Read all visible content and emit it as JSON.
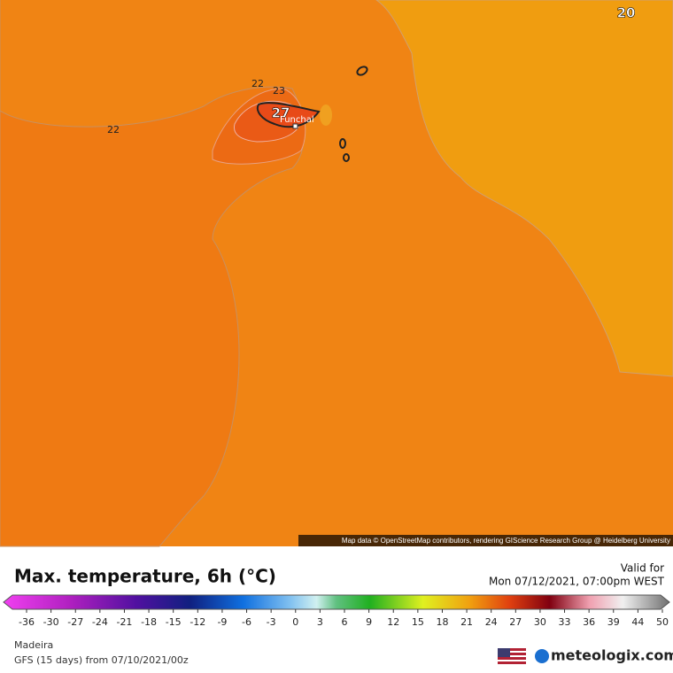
{
  "map": {
    "contour_labels": [
      "20",
      "22",
      "22",
      "23",
      "27"
    ],
    "place": "Funchal",
    "attribution": "Map data © OpenStreetMap contributors, rendering GIScience Research Group @ Heidelberg University"
  },
  "legend": {
    "title": "Max. temperature, 6h (°C)",
    "valid_label": "Valid for",
    "valid_time": "Mon 07/12/2021, 07:00pm WEST",
    "ticks": [
      -36,
      -30,
      -27,
      -24,
      -21,
      -18,
      -15,
      -12,
      -9,
      -6,
      -3,
      0,
      3,
      6,
      9,
      12,
      15,
      18,
      21,
      24,
      27,
      30,
      33,
      36,
      39,
      44,
      50
    ]
  },
  "footer": {
    "region": "Madeira",
    "model": "GFS (15 days) from  07/10/2021/00z",
    "brand": "meteologix.com"
  }
}
